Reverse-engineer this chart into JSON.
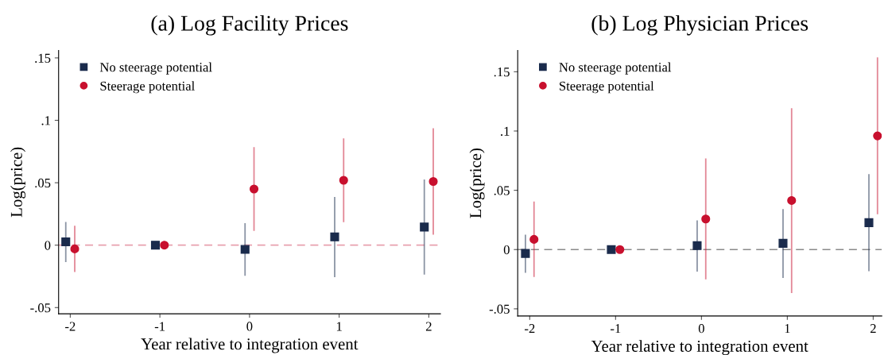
{
  "chart_data": [
    {
      "type": "scatter",
      "title": "(a) Log Facility Prices",
      "xlabel": "Year relative to integration event",
      "ylabel": "Log(price)",
      "xlim": [
        -2.13,
        2.13
      ],
      "xticks": [
        -2,
        -1,
        0,
        1,
        2
      ],
      "ylim": [
        -0.055,
        0.156
      ],
      "yticks": [
        {
          "value": -0.05,
          "label": "-.05"
        },
        0,
        {
          "value": 0.05,
          "label": ".05"
        },
        {
          "value": 0.1,
          "label": ".1"
        },
        {
          "value": 0.15,
          "label": ".15"
        }
      ],
      "grid": false,
      "legend": "top left",
      "ref_lines": [
        {
          "axis": "y",
          "value": 0,
          "color": "#e8a0ae",
          "line_style": "dashed"
        }
      ],
      "series": [
        {
          "name": "No steerage potential",
          "color": "#1a2b4c",
          "marker": "square",
          "x": [
            -2.05,
            -1.05,
            -0.05,
            0.95,
            1.95
          ],
          "values": [
            0.0027,
            0,
            -0.0034,
            0.0066,
            0.0145
          ],
          "errors": [
            [
              -0.013,
              0.018
            ],
            null,
            [
              -0.024,
              0.017
            ],
            [
              -0.025,
              0.038
            ],
            [
              -0.023,
              0.052
            ]
          ]
        },
        {
          "name": "Steerage potential",
          "color": "#c8102e",
          "marker": "circle",
          "x": [
            -1.95,
            -0.95,
            0.05,
            1.05,
            2.05
          ],
          "values": [
            -0.003,
            0,
            0.045,
            0.052,
            0.051
          ],
          "errors": [
            [
              -0.021,
              0.015
            ],
            null,
            [
              0.012,
              0.078
            ],
            [
              0.019,
              0.085
            ],
            [
              0.009,
              0.093
            ]
          ]
        }
      ]
    },
    {
      "type": "scatter",
      "title": "(b) Log Physician Prices",
      "xlabel": "Year relative to integration event",
      "ylabel": "Log(price)",
      "xlim": [
        -2.14,
        2.1
      ],
      "xticks": [
        -2,
        -1,
        0,
        1,
        2
      ],
      "ylim": [
        -0.056,
        0.168
      ],
      "yticks": [
        {
          "value": -0.05,
          "label": "-.05"
        },
        0,
        {
          "value": 0.05,
          "label": ".05"
        },
        {
          "value": 0.1,
          "label": ".1"
        },
        {
          "value": 0.15,
          "label": ".15"
        }
      ],
      "grid": false,
      "legend": "top left",
      "ref_lines": [
        {
          "axis": "y",
          "value": 0,
          "color": "#8a8a8a",
          "line_style": "dashed"
        }
      ],
      "series": [
        {
          "name": "No steerage potential",
          "color": "#1a2b4c",
          "marker": "square",
          "x": [
            -2.05,
            -1.05,
            -0.05,
            0.95,
            1.95
          ],
          "values": [
            -0.0033,
            0,
            0.0033,
            0.0053,
            0.0227
          ],
          "errors": [
            [
              -0.019,
              0.012
            ],
            null,
            [
              -0.018,
              0.024
            ],
            [
              -0.0234,
              0.0335
            ],
            [
              -0.0177,
              0.063
            ]
          ]
        },
        {
          "name": "Steerage potential",
          "color": "#c8102e",
          "marker": "circle",
          "x": [
            -1.95,
            -0.95,
            0.05,
            1.05,
            2.05
          ],
          "values": [
            0.0086,
            0,
            0.0258,
            0.0414,
            0.0959
          ],
          "errors": [
            [
              -0.0225,
              0.04
            ],
            null,
            [
              -0.0246,
              0.0763
            ],
            [
              -0.0361,
              0.1187
            ],
            [
              0.0304,
              0.1615
            ]
          ]
        }
      ]
    }
  ]
}
